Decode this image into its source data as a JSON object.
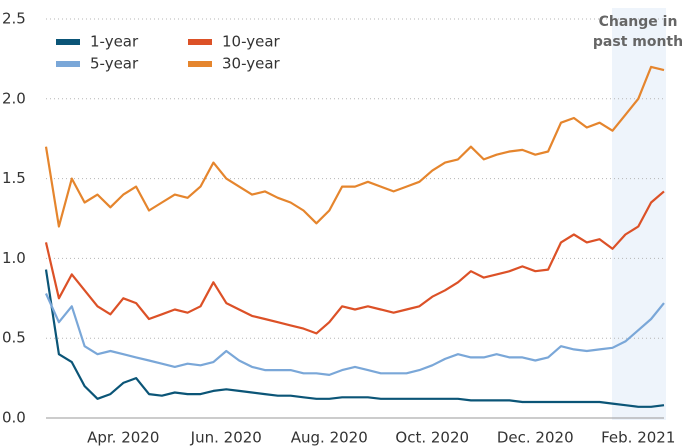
{
  "chart_data": {
    "type": "line",
    "annotation": [
      "Change in",
      "past month"
    ],
    "categories": [
      null,
      null,
      null,
      null,
      null,
      null,
      "Apr. 2020",
      null,
      null,
      null,
      null,
      null,
      null,
      null,
      "Jun. 2020",
      null,
      null,
      null,
      null,
      null,
      null,
      null,
      "Aug. 2020",
      null,
      null,
      null,
      null,
      null,
      null,
      null,
      "Oct. 2020",
      null,
      null,
      null,
      null,
      null,
      null,
      null,
      "Dec. 2020",
      null,
      null,
      null,
      null,
      null,
      null,
      null,
      "Feb. 2021",
      null,
      null
    ],
    "series": [
      {
        "name": "1-year",
        "color": "#0b5577",
        "values": [
          0.93,
          0.4,
          0.35,
          0.2,
          0.12,
          0.15,
          0.22,
          0.25,
          0.15,
          0.14,
          0.16,
          0.15,
          0.15,
          0.17,
          0.18,
          0.17,
          0.16,
          0.15,
          0.14,
          0.14,
          0.13,
          0.12,
          0.12,
          0.13,
          0.13,
          0.13,
          0.12,
          0.12,
          0.12,
          0.12,
          0.12,
          0.12,
          0.12,
          0.11,
          0.11,
          0.11,
          0.11,
          0.1,
          0.1,
          0.1,
          0.1,
          0.1,
          0.1,
          0.1,
          0.09,
          0.08,
          0.07,
          0.07,
          0.08
        ]
      },
      {
        "name": "5-year",
        "color": "#7aa7d8",
        "values": [
          0.78,
          0.6,
          0.7,
          0.45,
          0.4,
          0.42,
          0.4,
          0.38,
          0.36,
          0.34,
          0.32,
          0.34,
          0.33,
          0.35,
          0.42,
          0.36,
          0.32,
          0.3,
          0.3,
          0.3,
          0.28,
          0.28,
          0.27,
          0.3,
          0.32,
          0.3,
          0.28,
          0.28,
          0.28,
          0.3,
          0.33,
          0.37,
          0.4,
          0.38,
          0.38,
          0.4,
          0.38,
          0.38,
          0.36,
          0.38,
          0.45,
          0.43,
          0.42,
          0.43,
          0.44,
          0.48,
          0.55,
          0.62,
          0.72
        ]
      },
      {
        "name": "10-year",
        "color": "#dc5127",
        "values": [
          1.1,
          0.75,
          0.9,
          0.8,
          0.7,
          0.65,
          0.75,
          0.72,
          0.62,
          0.65,
          0.68,
          0.66,
          0.7,
          0.85,
          0.72,
          0.68,
          0.64,
          0.62,
          0.6,
          0.58,
          0.56,
          0.53,
          0.6,
          0.7,
          0.68,
          0.7,
          0.68,
          0.66,
          0.68,
          0.7,
          0.76,
          0.8,
          0.85,
          0.92,
          0.88,
          0.9,
          0.92,
          0.95,
          0.92,
          0.93,
          1.1,
          1.15,
          1.1,
          1.12,
          1.06,
          1.15,
          1.2,
          1.35,
          1.42
        ]
      },
      {
        "name": "30-year",
        "color": "#e5852d",
        "values": [
          1.7,
          1.2,
          1.5,
          1.35,
          1.4,
          1.32,
          1.4,
          1.45,
          1.3,
          1.35,
          1.4,
          1.38,
          1.45,
          1.6,
          1.5,
          1.45,
          1.4,
          1.42,
          1.38,
          1.35,
          1.3,
          1.22,
          1.3,
          1.45,
          1.45,
          1.48,
          1.45,
          1.42,
          1.45,
          1.48,
          1.55,
          1.6,
          1.62,
          1.7,
          1.62,
          1.65,
          1.67,
          1.68,
          1.65,
          1.67,
          1.85,
          1.88,
          1.82,
          1.85,
          1.8,
          1.9,
          2.0,
          2.2,
          2.18
        ]
      }
    ],
    "ylim": [
      0,
      2.5
    ],
    "yticks": [
      {
        "value": 0,
        "label": "0.0"
      },
      {
        "value": 0.5,
        "label": "0.5"
      },
      {
        "value": 1,
        "label": "1.0"
      },
      {
        "value": 1.5,
        "label": "1.5"
      },
      {
        "value": 2,
        "label": "2.0"
      },
      {
        "value": 2.5,
        "label": "2.5"
      }
    ],
    "grid": true
  }
}
